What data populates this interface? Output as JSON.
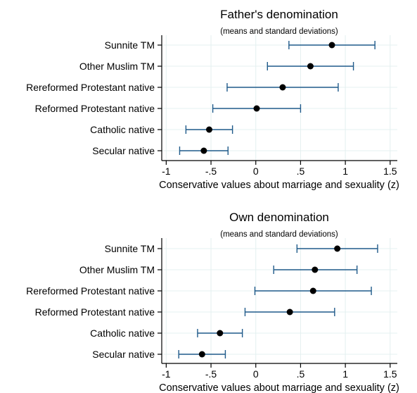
{
  "chart_data": [
    {
      "type": "scatter",
      "title": "Father's denomination",
      "subtitle": "(means and standard deviations)",
      "xlabel": "Conservative values about marriage and sexuality (z)",
      "ylabel": "",
      "xlim": [
        -1.05,
        1.58
      ],
      "xticks": [
        -1,
        -0.5,
        0,
        0.5,
        1,
        1.5
      ],
      "xtick_labels": [
        "-1",
        "-.5",
        "0",
        ".5",
        "1",
        "1.5"
      ],
      "grid": true,
      "categories": [
        "Sunnite TM",
        "Other Muslim TM",
        "Rereformed Protestant native",
        "Reformed Protestant native",
        "Catholic native",
        "Secular native"
      ],
      "means": [
        0.85,
        0.61,
        0.3,
        0.01,
        -0.52,
        -0.58
      ],
      "lower": [
        0.37,
        0.13,
        -0.32,
        -0.48,
        -0.78,
        -0.85
      ],
      "upper": [
        1.33,
        1.09,
        0.92,
        0.5,
        -0.26,
        -0.31
      ]
    },
    {
      "type": "scatter",
      "title": "Own denomination",
      "subtitle": "(means and standard deviations)",
      "xlabel": "Conservative values about marriage and sexuality (z)",
      "ylabel": "",
      "xlim": [
        -1.05,
        1.58
      ],
      "xticks": [
        -1,
        -0.5,
        0,
        0.5,
        1,
        1.5
      ],
      "xtick_labels": [
        "-1",
        "-.5",
        "0",
        ".5",
        "1",
        "1.5"
      ],
      "grid": true,
      "categories": [
        "Sunnite TM",
        "Other Muslim TM",
        "Rereformed Protestant native",
        "Reformed Protestant native",
        "Catholic native",
        "Secular native"
      ],
      "means": [
        0.91,
        0.66,
        0.64,
        0.38,
        -0.4,
        -0.6
      ],
      "lower": [
        0.46,
        0.2,
        -0.01,
        -0.12,
        -0.65,
        -0.86
      ],
      "upper": [
        1.36,
        1.13,
        1.29,
        0.88,
        -0.15,
        -0.34
      ]
    }
  ]
}
